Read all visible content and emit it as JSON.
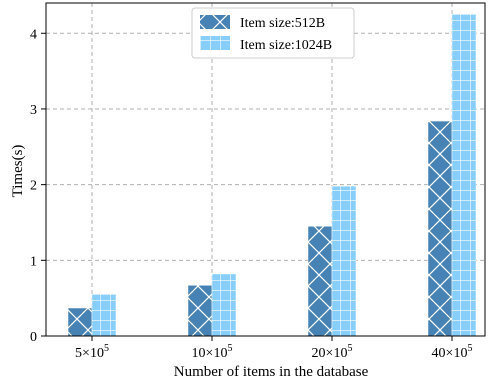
{
  "chart_data": {
    "type": "bar",
    "xlabel": "Number of items in the database",
    "ylabel": "Times(s)",
    "categories": [
      {
        "base": "5",
        "exp": "5"
      },
      {
        "base": "10",
        "exp": "5"
      },
      {
        "base": "20",
        "exp": "5"
      },
      {
        "base": "40",
        "exp": "5"
      }
    ],
    "series": [
      {
        "name": "Item size:512B",
        "values": [
          0.37,
          0.67,
          1.45,
          2.84
        ],
        "color": "#4682b4",
        "pattern": "cross-hatch"
      },
      {
        "name": "Item size:1024B",
        "values": [
          0.55,
          0.82,
          1.98,
          4.25
        ],
        "color": "#87cefa",
        "pattern": "grid"
      }
    ],
    "ylim": [
      0,
      4.4
    ],
    "yticks": [
      0,
      1,
      2,
      3,
      4
    ],
    "grid": true,
    "legend_position": "top-center"
  }
}
